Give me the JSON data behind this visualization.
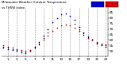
{
  "title_line1": "Milwaukee Weather Outdoor Temperature",
  "title_line2": "vs THSW Index",
  "hours": [
    0,
    1,
    2,
    3,
    4,
    5,
    6,
    7,
    8,
    9,
    10,
    11,
    12,
    13,
    14,
    15,
    16,
    17,
    18,
    19,
    20,
    21,
    22,
    23
  ],
  "temp": [
    55,
    54,
    53,
    52,
    51,
    50,
    51,
    53,
    56,
    60,
    64,
    68,
    71,
    73,
    74,
    73,
    71,
    68,
    65,
    62,
    60,
    58,
    57,
    56
  ],
  "thsw": [
    53,
    52,
    51,
    50,
    49,
    48,
    50,
    54,
    58,
    64,
    70,
    76,
    80,
    83,
    84,
    82,
    78,
    72,
    67,
    63,
    60,
    57,
    55,
    54
  ],
  "temp_color": "#dd0000",
  "thsw_color": "#0000cc",
  "black_color": "#000000",
  "bg_color": "#ffffff",
  "grid_color": "#999999",
  "ylim_min": 45,
  "ylim_max": 90,
  "ytick_values": [
    50,
    55,
    60,
    65,
    70,
    75,
    80,
    85
  ],
  "xtick_values": [
    1,
    3,
    5,
    7,
    9,
    11,
    13,
    15,
    17,
    19,
    21,
    23
  ],
  "legend_blue_color": "#0000cc",
  "legend_red_color": "#dd0000"
}
